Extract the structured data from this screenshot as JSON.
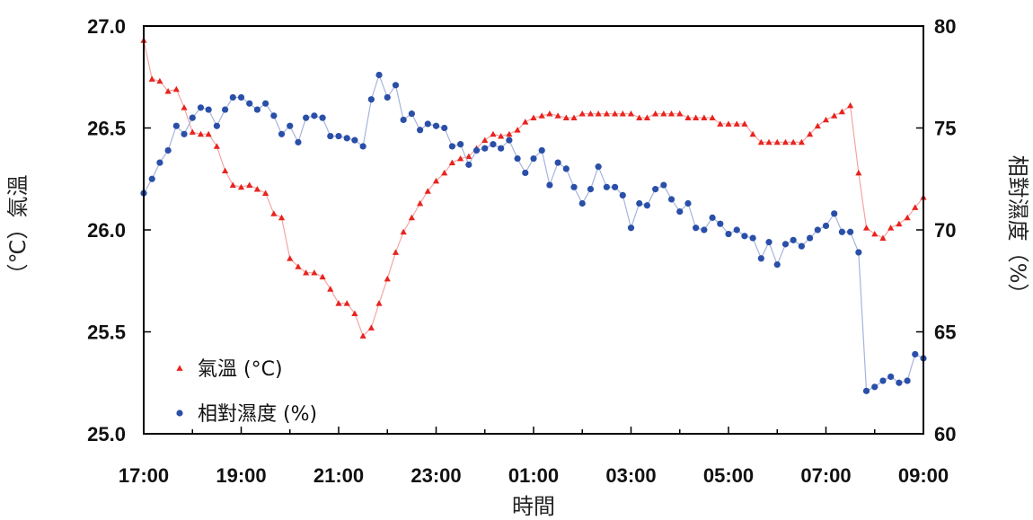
{
  "chart_data": {
    "type": "line",
    "title": "",
    "xlabel": "時間",
    "ylabel_left": "（℃）氣溫",
    "ylabel_right": "相對濕度（%）",
    "x_tick_labels": [
      "17:00",
      "19:00",
      "21:00",
      "23:00",
      "01:00",
      "03:00",
      "05:00",
      "07:00",
      "09:00"
    ],
    "x_unit": "hours since 17:00",
    "xlim": [
      0,
      16
    ],
    "ylim_left": [
      25.0,
      27.0
    ],
    "ylim_right": [
      60,
      80
    ],
    "y_ticks_left": [
      "25.0",
      "25.5",
      "26.0",
      "26.5",
      "27.0"
    ],
    "y_ticks_right": [
      "60",
      "65",
      "70",
      "75",
      "80"
    ],
    "legend_position": "bottom-left",
    "grid": false,
    "series": [
      {
        "name": "氣溫 (°C)",
        "axis": "left",
        "color": "#e8231e",
        "marker": "triangle",
        "x": [
          0.0,
          0.17,
          0.33,
          0.5,
          0.67,
          0.83,
          1.0,
          1.17,
          1.33,
          1.5,
          1.67,
          1.83,
          2.0,
          2.17,
          2.33,
          2.5,
          2.67,
          2.83,
          3.0,
          3.17,
          3.33,
          3.5,
          3.67,
          3.83,
          4.0,
          4.17,
          4.33,
          4.5,
          4.67,
          4.83,
          5.0,
          5.17,
          5.33,
          5.5,
          5.67,
          5.83,
          6.0,
          6.17,
          6.33,
          6.5,
          6.67,
          6.83,
          7.0,
          7.17,
          7.33,
          7.5,
          7.67,
          7.83,
          8.0,
          8.17,
          8.33,
          8.5,
          8.67,
          8.83,
          9.0,
          9.17,
          9.33,
          9.5,
          9.67,
          9.83,
          10.0,
          10.17,
          10.33,
          10.5,
          10.67,
          10.83,
          11.0,
          11.17,
          11.33,
          11.5,
          11.67,
          11.83,
          12.0,
          12.17,
          12.33,
          12.5,
          12.67,
          12.83,
          13.0,
          13.17,
          13.33,
          13.5,
          13.67,
          13.83,
          14.0,
          14.17,
          14.33,
          14.5,
          14.67,
          14.83,
          15.0,
          15.17,
          15.33,
          15.5,
          15.67,
          15.83,
          16.0
        ],
        "values": [
          26.93,
          26.74,
          26.73,
          26.68,
          26.69,
          26.6,
          26.48,
          26.47,
          26.47,
          26.41,
          26.29,
          26.22,
          26.21,
          26.22,
          26.2,
          26.18,
          26.08,
          26.06,
          25.86,
          25.82,
          25.79,
          25.79,
          25.77,
          25.71,
          25.64,
          25.64,
          25.59,
          25.48,
          25.52,
          25.64,
          25.76,
          25.89,
          25.99,
          26.06,
          26.13,
          26.19,
          26.24,
          26.28,
          26.33,
          26.35,
          26.36,
          26.4,
          26.44,
          26.47,
          26.46,
          26.47,
          26.49,
          26.53,
          26.55,
          26.56,
          26.57,
          26.56,
          26.55,
          26.55,
          26.57,
          26.57,
          26.57,
          26.57,
          26.57,
          26.57,
          26.57,
          26.55,
          26.55,
          26.57,
          26.57,
          26.57,
          26.57,
          26.55,
          26.55,
          26.55,
          26.55,
          26.52,
          26.52,
          26.52,
          26.52,
          26.47,
          26.43,
          26.43,
          26.43,
          26.43,
          26.43,
          26.43,
          26.47,
          26.51,
          26.54,
          26.56,
          26.58,
          26.61,
          26.28,
          26.01,
          25.98,
          25.96,
          26.01,
          26.03,
          26.06,
          26.11,
          26.16
        ]
      },
      {
        "name": "相對濕度 (%)",
        "axis": "right",
        "color": "#2a4fa8",
        "marker": "circle",
        "x": [
          0.0,
          0.17,
          0.33,
          0.5,
          0.67,
          0.83,
          1.0,
          1.17,
          1.33,
          1.5,
          1.67,
          1.83,
          2.0,
          2.17,
          2.33,
          2.5,
          2.67,
          2.83,
          3.0,
          3.17,
          3.33,
          3.5,
          3.67,
          3.83,
          4.0,
          4.17,
          4.33,
          4.5,
          4.67,
          4.83,
          5.0,
          5.17,
          5.33,
          5.5,
          5.67,
          5.83,
          6.0,
          6.17,
          6.33,
          6.5,
          6.67,
          6.83,
          7.0,
          7.17,
          7.33,
          7.5,
          7.67,
          7.83,
          8.0,
          8.17,
          8.33,
          8.5,
          8.67,
          8.83,
          9.0,
          9.17,
          9.33,
          9.5,
          9.67,
          9.83,
          10.0,
          10.17,
          10.33,
          10.5,
          10.67,
          10.83,
          11.0,
          11.17,
          11.33,
          11.5,
          11.67,
          11.83,
          12.0,
          12.17,
          12.33,
          12.5,
          12.67,
          12.83,
          13.0,
          13.17,
          13.33,
          13.5,
          13.67,
          13.83,
          14.0,
          14.17,
          14.33,
          14.5,
          14.67,
          14.83,
          15.0,
          15.17,
          15.33,
          15.5,
          15.67,
          15.83,
          16.0
        ],
        "values": [
          71.8,
          72.5,
          73.3,
          73.9,
          75.1,
          74.7,
          75.5,
          76.0,
          75.9,
          75.1,
          75.9,
          76.5,
          76.5,
          76.2,
          75.9,
          76.2,
          75.6,
          74.7,
          75.1,
          74.3,
          75.5,
          75.6,
          75.5,
          74.6,
          74.6,
          74.5,
          74.4,
          74.1,
          76.4,
          77.6,
          76.5,
          77.1,
          75.4,
          75.7,
          74.9,
          75.2,
          75.1,
          75.0,
          74.1,
          74.2,
          73.2,
          73.9,
          74.0,
          74.2,
          74.0,
          74.4,
          73.5,
          72.8,
          73.5,
          73.9,
          72.2,
          73.3,
          73.0,
          72.1,
          71.3,
          72.0,
          73.1,
          72.1,
          72.1,
          71.7,
          70.1,
          71.3,
          71.2,
          72.0,
          72.2,
          71.5,
          70.9,
          71.3,
          70.1,
          70.0,
          70.6,
          70.3,
          69.8,
          70.0,
          69.7,
          69.6,
          68.6,
          69.4,
          68.3,
          69.3,
          69.5,
          69.2,
          69.6,
          70.0,
          70.2,
          70.8,
          69.9,
          69.9,
          68.9,
          62.1,
          62.3,
          62.6,
          62.8,
          62.5,
          62.6,
          63.9,
          63.7
        ]
      }
    ]
  }
}
